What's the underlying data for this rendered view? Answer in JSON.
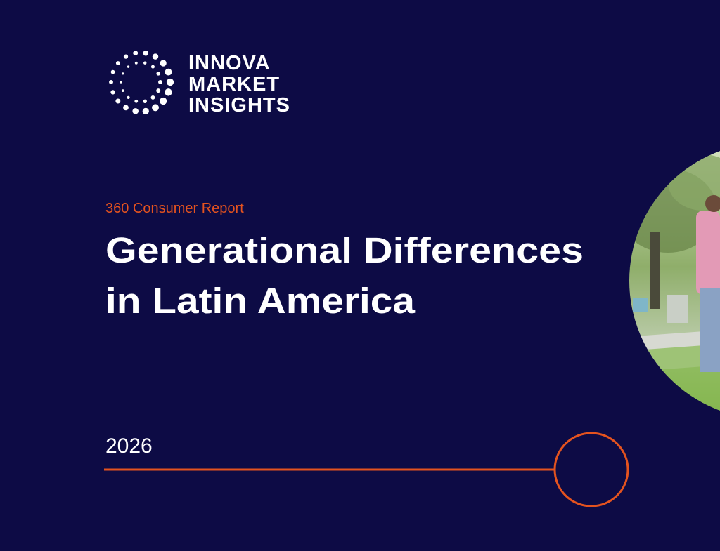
{
  "logo": {
    "lines": [
      "INNOVA",
      "MARKET",
      "INSIGHTS"
    ]
  },
  "report_type": "360 Consumer Report",
  "title": {
    "lines": [
      "Generational Differences",
      "in Latin America"
    ]
  },
  "year": "2026"
}
